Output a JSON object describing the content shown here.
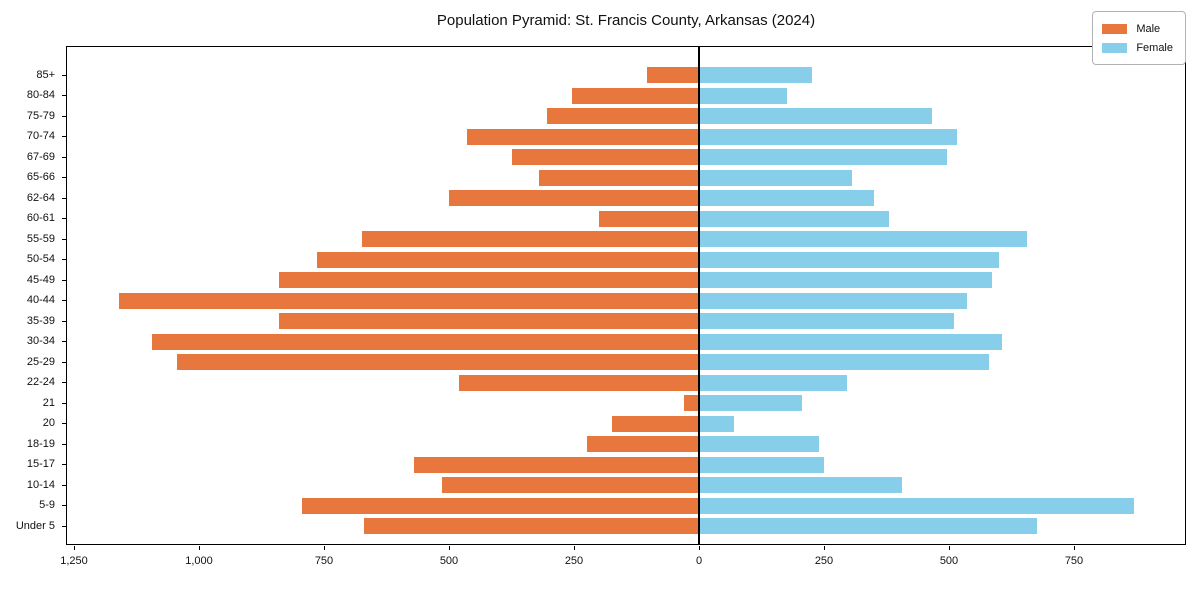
{
  "chart_data": {
    "type": "bar",
    "variant": "population-pyramid",
    "title": "Population Pyramid: St. Francis County, Arkansas (2024)",
    "categories_top_to_bottom": [
      "85+",
      "80-84",
      "75-79",
      "70-74",
      "67-69",
      "65-66",
      "62-64",
      "60-61",
      "55-59",
      "50-54",
      "45-49",
      "40-44",
      "35-39",
      "30-34",
      "25-29",
      "22-24",
      "21",
      "20",
      "18-19",
      "15-17",
      "10-14",
      "5-9",
      "Under 5"
    ],
    "series": [
      {
        "name": "Male",
        "side": "left",
        "color": "#e8773d",
        "values": [
          105,
          255,
          305,
          465,
          375,
          320,
          500,
          200,
          675,
          765,
          840,
          1160,
          840,
          1095,
          1045,
          480,
          30,
          175,
          225,
          570,
          515,
          795,
          670
        ]
      },
      {
        "name": "Female",
        "side": "right",
        "color": "#87ceeb",
        "values": [
          225,
          175,
          465,
          515,
          495,
          305,
          350,
          380,
          655,
          600,
          585,
          535,
          510,
          605,
          580,
          295,
          205,
          70,
          240,
          250,
          405,
          870,
          675
        ]
      }
    ],
    "xlim": [
      -1264,
      976
    ],
    "xticks": {
      "values": [
        -1250,
        -1000,
        -750,
        -500,
        -250,
        0,
        250,
        500,
        750
      ],
      "labels": [
        "1,250",
        "1,000",
        "750",
        "500",
        "250",
        "0",
        "250",
        "500",
        "750"
      ]
    },
    "zero_line": true,
    "grid": false,
    "legend_position": "upper right",
    "axis_color": "#000000",
    "text_color": "#111111",
    "background_color": "#ffffff"
  }
}
